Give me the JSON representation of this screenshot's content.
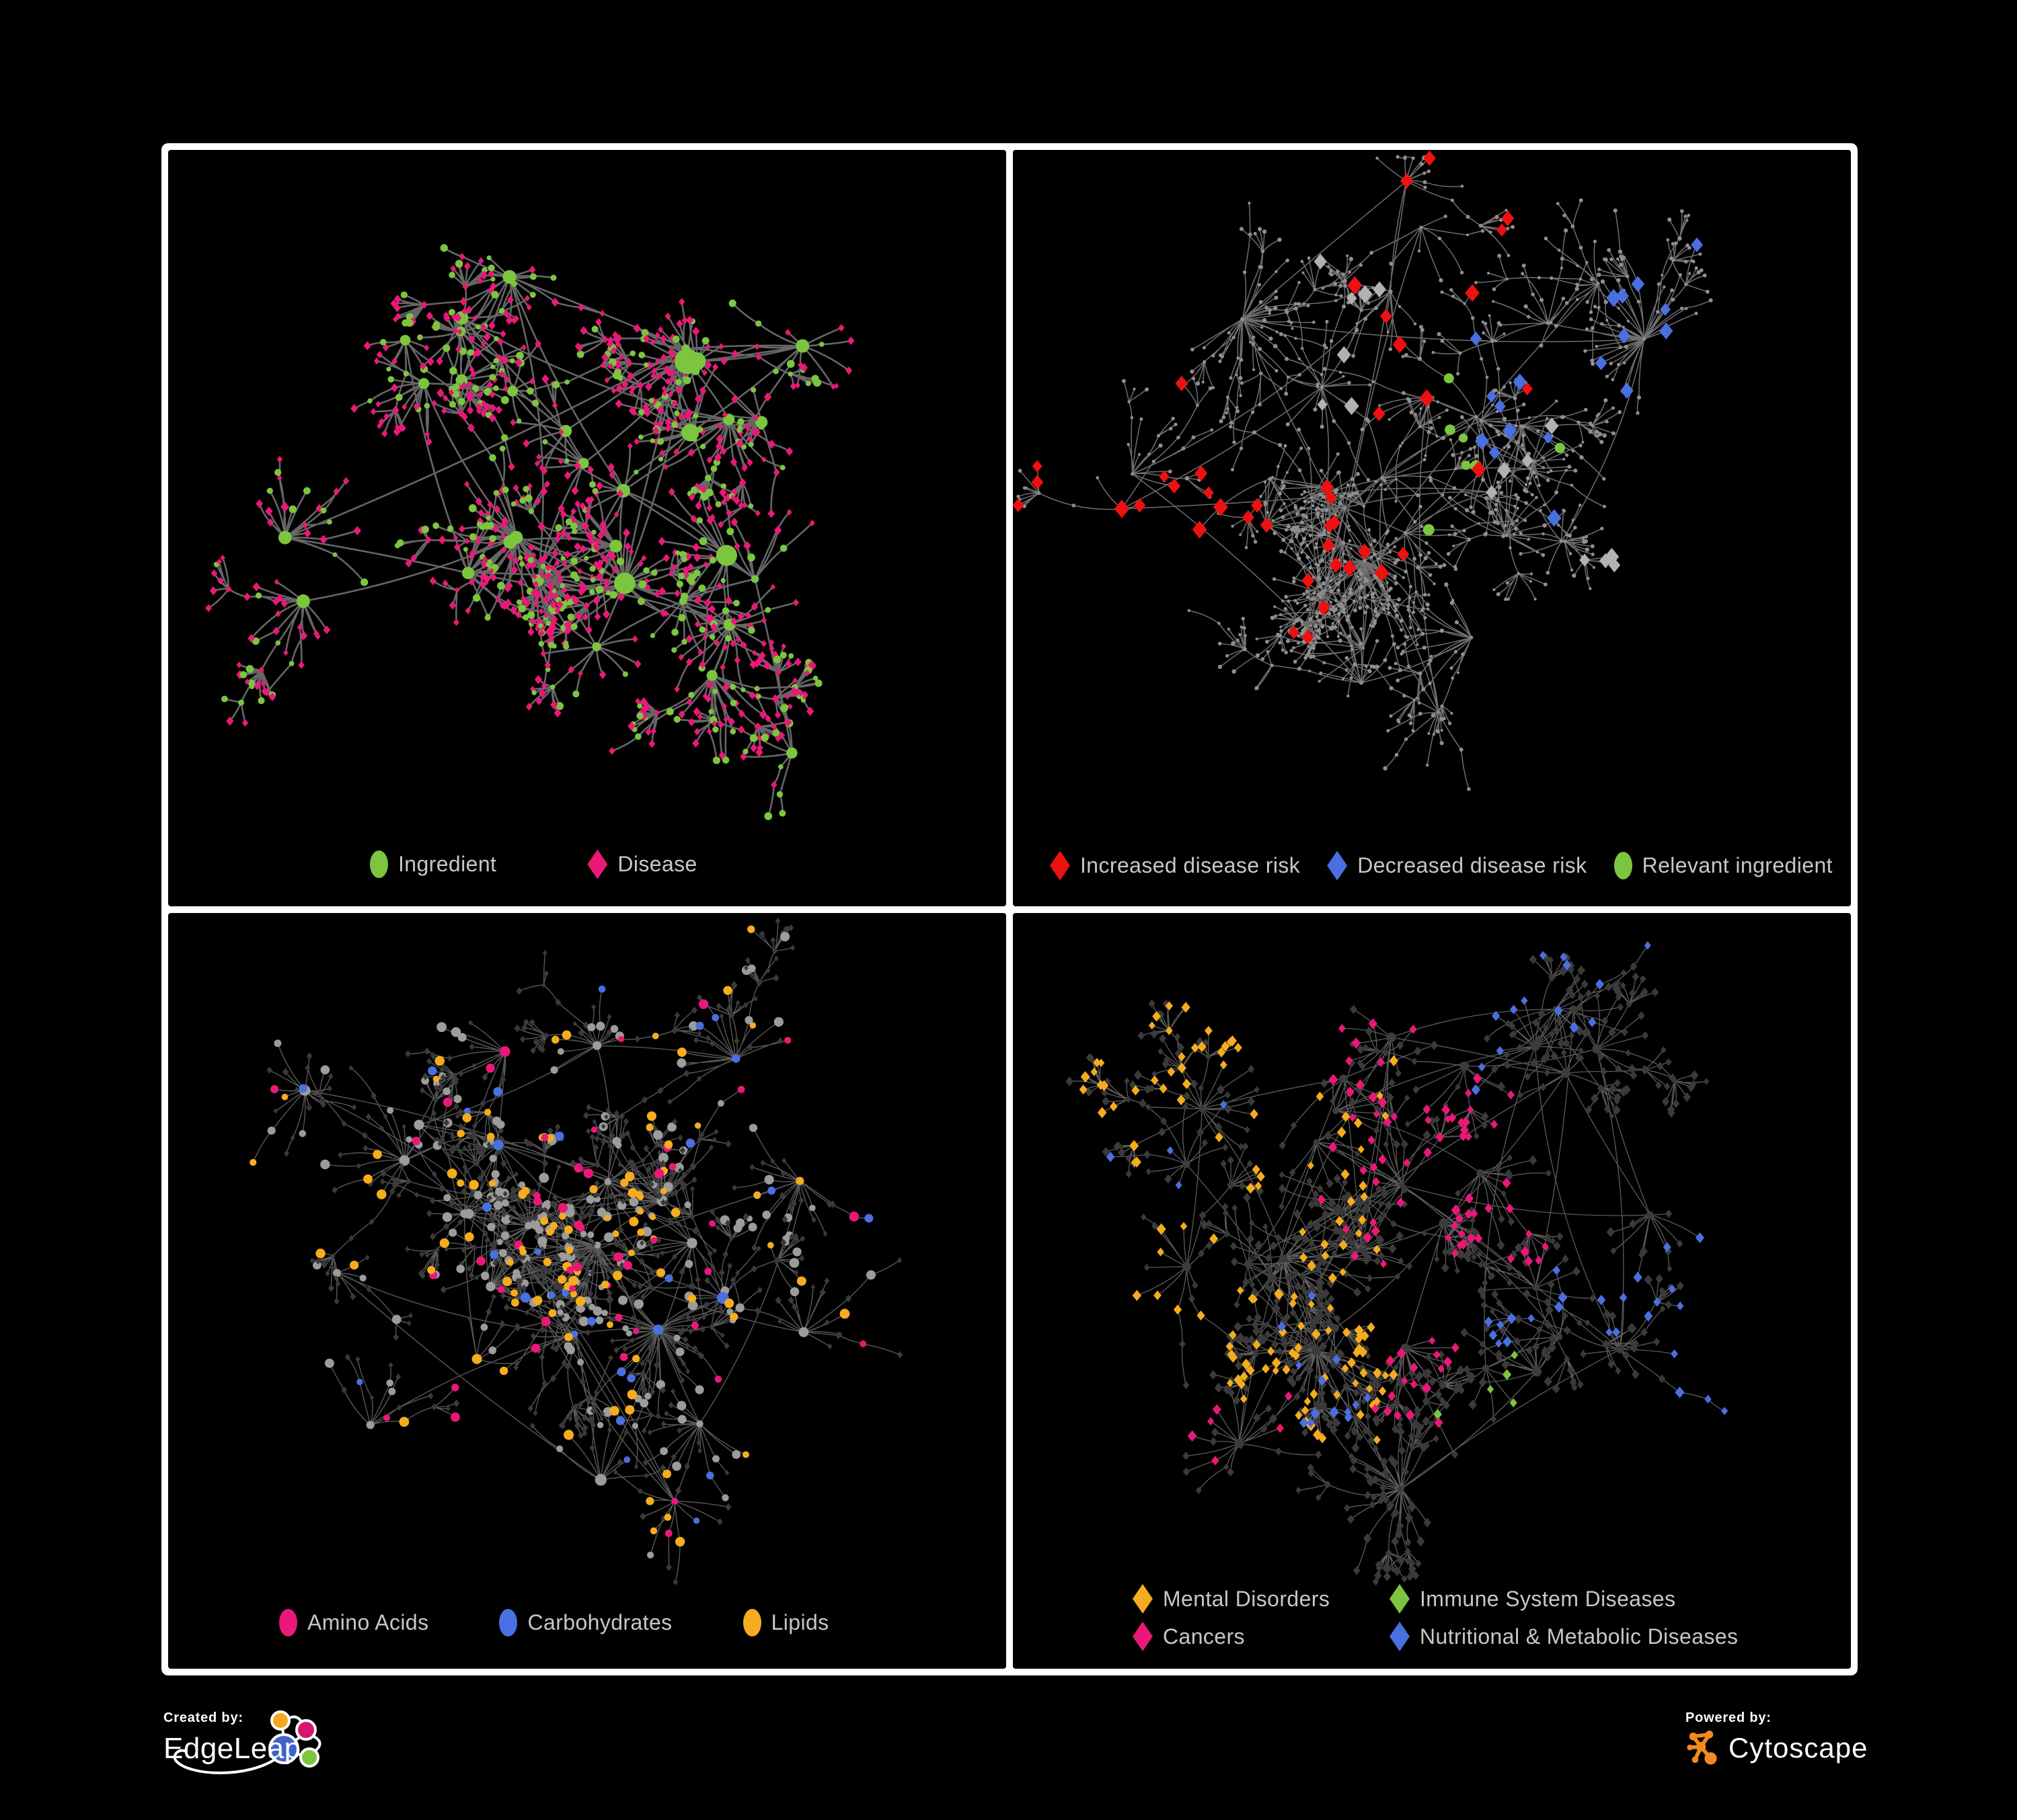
{
  "page": {
    "background": "#000000",
    "frame_color": "#ffffff"
  },
  "colors": {
    "green": "#7CC63F",
    "pink": "#EA1878",
    "red": "#EE1111",
    "blue": "#4A6FE0",
    "orange": "#F5AC1E",
    "grayHi": "#B2B2B2",
    "dot": "#8F8F8F",
    "gray": "#9C9C9C",
    "dark": "#3A3A3A",
    "dark2": "#3C3C3C",
    "edgeTL": "#6B6B6B",
    "edgeTR": "#828282",
    "edgeBL": "#A0A0A0",
    "edgeBR": "#9A9A9A",
    "legendText": "#C7C7C7"
  },
  "panels": [
    {
      "id": "ingredient-disease",
      "legend": [
        {
          "shape": "circle",
          "color": "#7CC63F",
          "label": "Ingredient"
        },
        {
          "shape": "diamond",
          "color": "#EA1878",
          "label": "Disease"
        }
      ],
      "network": {
        "seed": 11,
        "mode": "tl",
        "hubs": 32,
        "spread": 0.3,
        "leaf": [
          6,
          20
        ],
        "leafDist": [
          26,
          82
        ],
        "chainP": 0.42,
        "extra": 10,
        "bursts": 2,
        "fanMax": 12,
        "edge": "edgeTL",
        "edgeWidth": 2.6,
        "edgeOpacity": 0.95
      }
    },
    {
      "id": "disease-risk",
      "legend": [
        {
          "shape": "diamond",
          "color": "#EE1111",
          "label": "Increased disease risk"
        },
        {
          "shape": "diamond",
          "color": "#4A6FE0",
          "label": "Decreased disease risk"
        },
        {
          "shape": "circle",
          "color": "#7CC63F",
          "label": "Relevant ingredient"
        }
      ],
      "network": {
        "seed": 23,
        "mode": "tr",
        "hubs": 34,
        "spread": 0.32,
        "leaf": [
          4,
          16
        ],
        "leafDist": [
          26,
          88
        ],
        "chainP": 0.5,
        "extra": 9,
        "bursts": 3,
        "fanMax": 9,
        "edge": "edgeTR",
        "edgeWidth": 1.5,
        "edgeOpacity": 0.85
      }
    },
    {
      "id": "nutrient-classes",
      "legend": [
        {
          "shape": "circle",
          "color": "#EA1878",
          "label": "Amino Acids"
        },
        {
          "shape": "circle",
          "color": "#4A6FE0",
          "label": "Carbohydrates"
        },
        {
          "shape": "circle",
          "color": "#F5AC1E",
          "label": "Lipids"
        }
      ],
      "network": {
        "seed": 37,
        "mode": "bl",
        "hubs": 31,
        "spread": 0.31,
        "leaf": [
          5,
          20
        ],
        "leafDist": [
          26,
          84
        ],
        "chainP": 0.45,
        "extra": 10,
        "bursts": 3,
        "fanMax": 10,
        "edge": "edgeBL",
        "edgeWidth": 1.4,
        "edgeOpacity": 0.55
      }
    },
    {
      "id": "disease-classes",
      "legend": [
        {
          "shape": "diamond",
          "color": "#F5AC1E",
          "label": "Mental Disorders"
        },
        {
          "shape": "diamond",
          "color": "#7CC63F",
          "label": "Immune System Diseases"
        },
        {
          "shape": "diamond",
          "color": "#EA1878",
          "label": "Cancers"
        },
        {
          "shape": "diamond",
          "color": "#4A6FE0",
          "label": "Nutritional & Metabolic Diseases"
        }
      ],
      "network": {
        "seed": 53,
        "mode": "br",
        "hubs": 34,
        "spread": 0.32,
        "leaf": [
          5,
          18
        ],
        "leafDist": [
          26,
          86
        ],
        "chainP": 0.45,
        "extra": 10,
        "bursts": 3,
        "fanMax": 11,
        "edge": "edgeBR",
        "edgeWidth": 1.3,
        "edgeOpacity": 0.6
      }
    }
  ],
  "footer": {
    "created_by_label": "Created by:",
    "created_by_name": "EdgeLeap",
    "powered_by_label": "Powered by:",
    "powered_by_name": "Cytoscape",
    "edgeleap_logo_colors": {
      "orange": "#F4A71F",
      "pink": "#D6156E",
      "blue": "#4063C8",
      "green": "#7CC63F"
    },
    "cytoscape_logo_color": "#F28A1D"
  }
}
